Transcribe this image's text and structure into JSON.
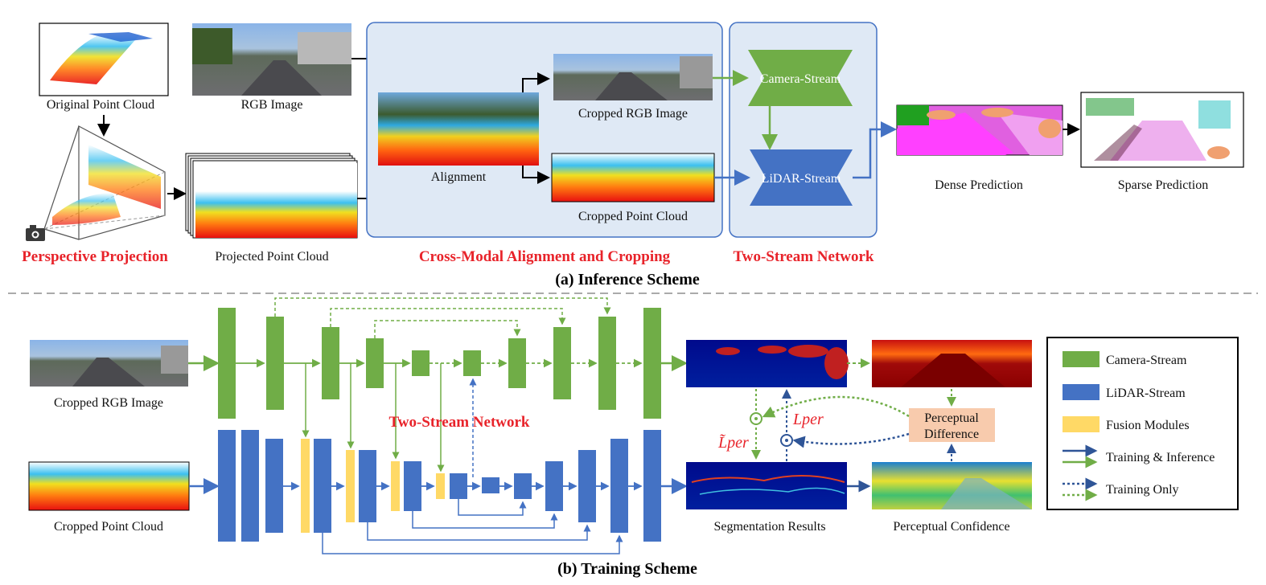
{
  "colors": {
    "camera": "#70ad47",
    "lidar": "#4472c4",
    "fusion": "#ffd966",
    "highlight": "#e8232a",
    "panel_bg": "#dfe9f5",
    "panel_border": "#4472c4",
    "perceptual_box": "#f8cbad"
  },
  "inference": {
    "original_point_cloud": "Original Point Cloud",
    "rgb_image": "RGB Image",
    "projected_point_cloud": "Projected Point Cloud",
    "alignment": "Alignment",
    "cropped_rgb_image": "Cropped RGB Image",
    "cropped_point_cloud": "Cropped Point Cloud",
    "camera_stream": "Camera-Stream",
    "lidar_stream": "LiDAR-Stream",
    "dense_prediction": "Dense Prediction",
    "sparse_prediction": "Sparse Prediction",
    "perspective_projection": "Perspective Projection",
    "cross_modal": "Cross-Modal Alignment and Cropping",
    "two_stream_network": "Two-Stream Network",
    "caption": "(a) Inference Scheme"
  },
  "training": {
    "cropped_rgb_image": "Cropped RGB Image",
    "cropped_point_cloud": "Cropped Point Cloud",
    "two_stream_network": "Two-Stream Network",
    "segmentation_results": "Segmentation Results",
    "perceptual_confidence": "Perceptual Confidence",
    "perceptual_difference_1": "Perceptual",
    "perceptual_difference_2": "Difference",
    "loss_tilde": "L̃per",
    "loss": "Lper",
    "caption": "(b) Training Scheme"
  },
  "legend": {
    "items": [
      {
        "label": "Camera-Stream",
        "type": "camera"
      },
      {
        "label": "LiDAR-Stream",
        "type": "lidar"
      },
      {
        "label": "Fusion Modules",
        "type": "fusion"
      },
      {
        "label": "Training & Inference",
        "type": "solid-arrows"
      },
      {
        "label": "Training Only",
        "type": "dotted-arrows"
      }
    ]
  },
  "icons": [
    "camera-icon"
  ]
}
